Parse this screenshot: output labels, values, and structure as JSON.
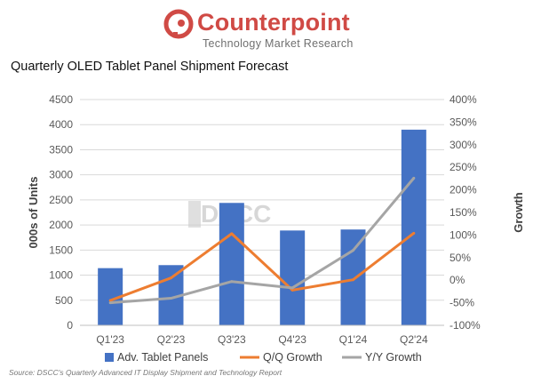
{
  "header": {
    "brand_name": "Counterpoint",
    "brand_tagline": "Technology Market Research",
    "brand_color": "#d04a45"
  },
  "watermark": "DSCC",
  "source_note": "Source: DSCC's Quarterly Advanced IT Display Shipment and Technology Report",
  "chart_data": {
    "type": "bar",
    "title": "Quarterly OLED Tablet Panel Shipment Forecast",
    "categories": [
      "Q1'23",
      "Q2'23",
      "Q3'23",
      "Q4'23",
      "Q1'24",
      "Q2'24"
    ],
    "ylabel": "000s of Units",
    "y2label": "Growth",
    "ylim": [
      0,
      4500
    ],
    "y2lim": [
      -100,
      400
    ],
    "yticks": [
      "0",
      "500",
      "1000",
      "1500",
      "2000",
      "2500",
      "3000",
      "3500",
      "4000",
      "4500"
    ],
    "y2ticks": [
      "-100%",
      "-50%",
      "0%",
      "50%",
      "100%",
      "150%",
      "200%",
      "250%",
      "300%",
      "350%",
      "400%"
    ],
    "legend_position": "bottom",
    "series": [
      {
        "name": "Adv. Tablet Panels",
        "type": "bar",
        "axis": "left",
        "color": "#4472c4",
        "values": [
          1140,
          1200,
          2440,
          1890,
          1910,
          3900
        ]
      },
      {
        "name": "Q/Q Growth",
        "type": "line",
        "axis": "right",
        "color": "#ed7d31",
        "values": [
          -45,
          5,
          103,
          -22,
          1,
          104
        ]
      },
      {
        "name": "Y/Y Growth",
        "type": "line",
        "axis": "right",
        "color": "#a5a5a5",
        "values": [
          -50,
          -40,
          -3,
          -17,
          66,
          226
        ]
      }
    ]
  }
}
